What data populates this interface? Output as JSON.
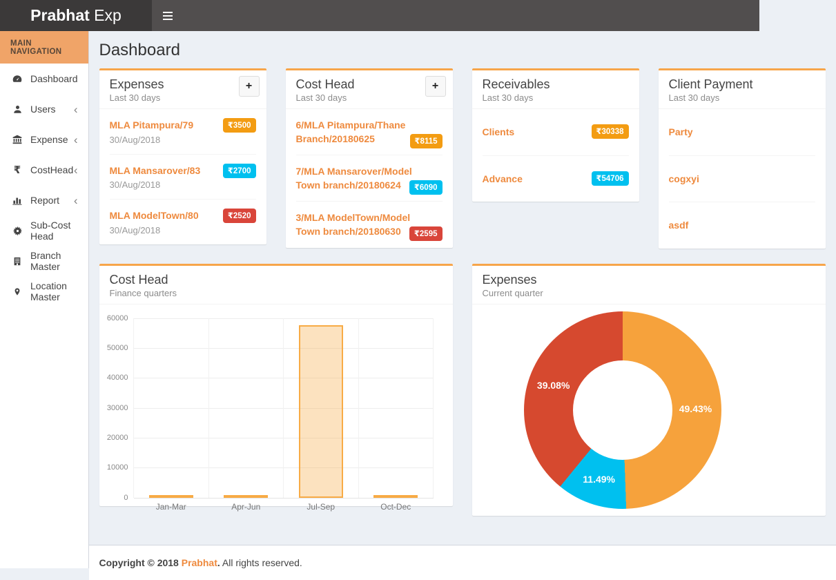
{
  "app": {
    "brand_bold": "Prabhat",
    "brand_suffix": " Exp",
    "nav_header": "MAIN NAVIGATION"
  },
  "page": {
    "title": "Dashboard"
  },
  "sidebar": {
    "items": [
      {
        "label": "Dashboard",
        "icon": "dashboard-icon",
        "expandable": false
      },
      {
        "label": "Users",
        "icon": "user-icon",
        "expandable": true
      },
      {
        "label": "Expense",
        "icon": "bank-icon",
        "expandable": true
      },
      {
        "label": "CostHead",
        "icon": "rupee-icon",
        "expandable": true
      },
      {
        "label": "Report",
        "icon": "bar-chart-icon",
        "expandable": true
      },
      {
        "label": "Sub-Cost Head",
        "icon": "gear-icon",
        "expandable": false
      },
      {
        "label": "Branch Master",
        "icon": "building-icon",
        "expandable": false
      },
      {
        "label": "Location Master",
        "icon": "map-marker-icon",
        "expandable": false
      }
    ]
  },
  "stat_cards": [
    {
      "id": "expenses",
      "title": "Expenses",
      "subtitle": "Last 30 days",
      "add_button": "+",
      "style": "dates",
      "items": [
        {
          "link": "MLA Pitampura/79",
          "date": "30/Aug/2018",
          "amount": "₹3500",
          "badge_color": "#f39c12"
        },
        {
          "link": "MLA Mansarover/83",
          "date": "30/Aug/2018",
          "amount": "₹2700",
          "badge_color": "#00c0ef"
        },
        {
          "link": "MLA ModelTown/80",
          "date": "30/Aug/2018",
          "amount": "₹2520",
          "badge_color": "#d9453a"
        }
      ]
    },
    {
      "id": "cost-head",
      "title": "Cost Head",
      "subtitle": "Last 30 days",
      "add_button": "+",
      "style": "twoline",
      "items": [
        {
          "link": "6/MLA Pitampura/Thane Branch/20180625",
          "amount": "₹8115",
          "badge_color": "#f39c12"
        },
        {
          "link": "7/MLA Mansarover/Model Town branch/20180624",
          "amount": "₹6090",
          "badge_color": "#00c0ef"
        },
        {
          "link": "3/MLA ModelTown/Model Town branch/20180630",
          "amount": "₹2595",
          "badge_color": "#d9453a"
        }
      ]
    },
    {
      "id": "receivables",
      "title": "Receivables",
      "subtitle": "Last 30 days",
      "style": "plain",
      "items": [
        {
          "link": "Clients",
          "amount": "₹30338",
          "badge_color": "#f39c12"
        },
        {
          "link": "Advance",
          "amount": "₹54706",
          "badge_color": "#00c0ef"
        }
      ]
    },
    {
      "id": "client-payment",
      "title": "Client Payment",
      "subtitle": "Last 30 days",
      "style": "plain",
      "items": [
        {
          "link": "Party"
        },
        {
          "link": "cogxyi"
        },
        {
          "link": "asdf"
        }
      ]
    }
  ],
  "chart_data": [
    {
      "type": "bar",
      "title": "Cost Head",
      "subtitle": "Finance quarters",
      "categories": [
        "Jan-Mar",
        "Apr-Jun",
        "Jul-Sep",
        "Oct-Dec"
      ],
      "values": [
        600,
        800,
        57700,
        500
      ],
      "ylim": [
        0,
        60000
      ],
      "ytick_step": 10000,
      "grid": true,
      "legend": "none",
      "bar_fill": "rgba(247,166,60,0.33)",
      "bar_border": "#f8ab45"
    },
    {
      "type": "pie",
      "donut": true,
      "title": "Expenses",
      "subtitle": "Current quarter",
      "start_angle": "top",
      "direction": "clockwise",
      "label_color": "#ffffff",
      "slices": [
        {
          "label": "49.43%",
          "value": 49.43,
          "color": "#f6a23c"
        },
        {
          "label": "11.49%",
          "value": 11.49,
          "color": "#00c0ef"
        },
        {
          "label": "39.08%",
          "value": 39.08,
          "color": "#d6492f"
        }
      ]
    }
  ],
  "footer": {
    "copyright_prefix": "Copyright © 2018",
    "brand": "Prabhat",
    "brand_dot": ".",
    "rest": "All rights reserved."
  },
  "colors": {
    "accent_orange": "#f7a54a",
    "link_orange": "#ee8a3e",
    "navbar": "#514e4e",
    "logo_bg": "#3b3939",
    "sidebar_header_bg": "#f0a468",
    "content_bg": "#ecf0f5",
    "badge_orange": "#f39c12",
    "badge_aqua": "#00c0ef",
    "badge_red": "#d9453a"
  }
}
